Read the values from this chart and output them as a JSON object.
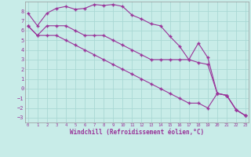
{
  "title": "",
  "xlabel": "Windchill (Refroidissement éolien,°C)",
  "background_color": "#c8ece8",
  "grid_color": "#aad8d4",
  "line_color": "#993399",
  "x_ticks": [
    0,
    1,
    2,
    3,
    4,
    5,
    6,
    7,
    8,
    9,
    10,
    11,
    12,
    13,
    14,
    15,
    16,
    17,
    18,
    19,
    20,
    21,
    22,
    23
  ],
  "ylim": [
    -3.5,
    9.0
  ],
  "xlim": [
    -0.3,
    23.3
  ],
  "yticks": [
    -3,
    -2,
    -1,
    0,
    1,
    2,
    3,
    4,
    5,
    6,
    7,
    8
  ],
  "series1_x": [
    0,
    1,
    2,
    3,
    4,
    5,
    6,
    7,
    8,
    9,
    10,
    11,
    12,
    13,
    14,
    15,
    16,
    17,
    18,
    19,
    20,
    21,
    22,
    23
  ],
  "series1_y": [
    7.8,
    6.5,
    7.8,
    8.3,
    8.5,
    8.2,
    8.3,
    8.7,
    8.6,
    8.7,
    8.5,
    7.6,
    7.2,
    6.7,
    6.5,
    5.4,
    4.4,
    3.0,
    4.7,
    3.2,
    -0.5,
    -0.7,
    -2.2,
    -2.8
  ],
  "series2_x": [
    0,
    1,
    2,
    3,
    4,
    5,
    6,
    7,
    8,
    9,
    10,
    11,
    12,
    13,
    14,
    15,
    16,
    17,
    18,
    19,
    20,
    21,
    22,
    23
  ],
  "series2_y": [
    6.5,
    5.5,
    6.5,
    6.5,
    6.5,
    6.0,
    5.5,
    5.5,
    5.5,
    5.0,
    4.5,
    4.0,
    3.5,
    3.0,
    3.0,
    3.0,
    3.0,
    3.0,
    2.7,
    2.5,
    -0.5,
    -0.7,
    -2.2,
    -2.8
  ],
  "series3_x": [
    0,
    1,
    2,
    3,
    4,
    5,
    6,
    7,
    8,
    9,
    10,
    11,
    12,
    13,
    14,
    15,
    16,
    17,
    18,
    19,
    20,
    21,
    22,
    23
  ],
  "series3_y": [
    6.5,
    5.5,
    5.5,
    5.5,
    5.0,
    4.5,
    4.0,
    3.5,
    3.0,
    2.5,
    2.0,
    1.5,
    1.0,
    0.5,
    0.0,
    -0.5,
    -1.0,
    -1.5,
    -1.5,
    -2.0,
    -0.5,
    -0.7,
    -2.2,
    -2.8
  ]
}
